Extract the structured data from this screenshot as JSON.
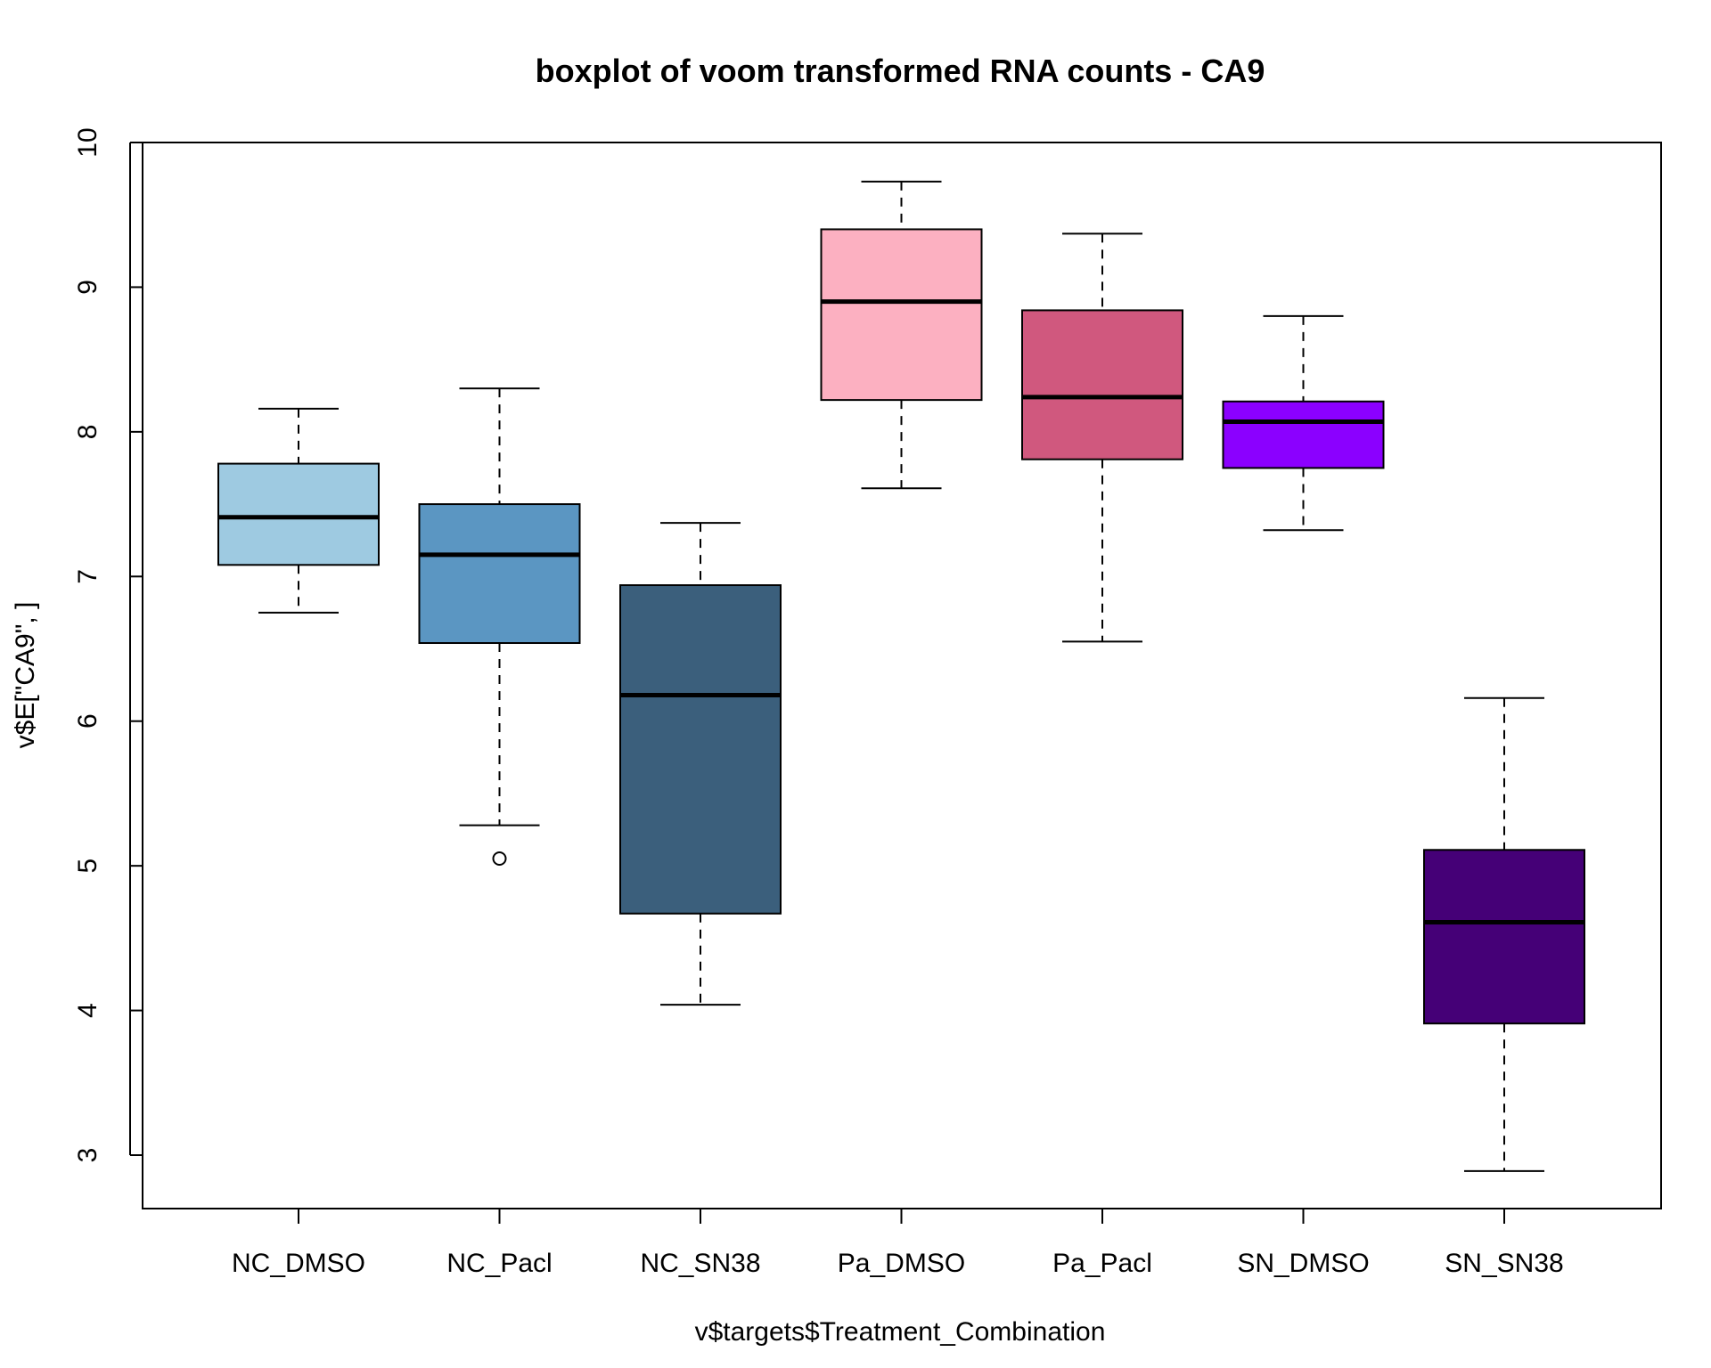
{
  "chart_data": {
    "type": "boxplot",
    "title": "boxplot of voom transformed RNA counts - CA9",
    "xlabel": "v$targets$Treatment_Combination",
    "ylabel": "v$E[\"CA9\", ]",
    "ylim": [
      2.7,
      10.0
    ],
    "yticks": [
      3,
      4,
      5,
      6,
      7,
      8,
      9,
      10
    ],
    "grid": false,
    "legend": "none",
    "categories": [
      "NC_DMSO",
      "NC_Pacl",
      "NC_SN38",
      "Pa_DMSO",
      "Pa_Pacl",
      "SN_DMSO",
      "SN_SN38"
    ],
    "boxes": [
      {
        "category": "NC_DMSO",
        "whisker_low": 6.75,
        "q1": 7.08,
        "median": 7.41,
        "q3": 7.78,
        "whisker_high": 8.16,
        "outliers": [],
        "color": "#9ecae1"
      },
      {
        "category": "NC_Pacl",
        "whisker_low": 5.28,
        "q1": 6.54,
        "median": 7.15,
        "q3": 7.5,
        "whisker_high": 8.3,
        "outliers": [
          5.05
        ],
        "color": "#5b96c2"
      },
      {
        "category": "NC_SN38",
        "whisker_low": 4.04,
        "q1": 4.67,
        "median": 6.18,
        "q3": 6.94,
        "whisker_high": 7.37,
        "outliers": [],
        "color": "#3b5f7c"
      },
      {
        "category": "Pa_DMSO",
        "whisker_low": 7.61,
        "q1": 8.22,
        "median": 8.9,
        "q3": 9.4,
        "whisker_high": 9.73,
        "outliers": [],
        "color": "#fcb0c1"
      },
      {
        "category": "Pa_Pacl",
        "whisker_low": 6.55,
        "q1": 7.81,
        "median": 8.24,
        "q3": 8.84,
        "whisker_high": 9.37,
        "outliers": [],
        "color": "#d0587e"
      },
      {
        "category": "SN_DMSO",
        "whisker_low": 7.32,
        "q1": 7.75,
        "median": 8.07,
        "q3": 8.21,
        "whisker_high": 8.8,
        "outliers": [],
        "color": "#8b00ff"
      },
      {
        "category": "SN_SN38",
        "whisker_low": 2.89,
        "q1": 3.91,
        "median": 4.61,
        "q3": 5.11,
        "whisker_high": 6.16,
        "outliers": [],
        "color": "#450077"
      }
    ]
  }
}
